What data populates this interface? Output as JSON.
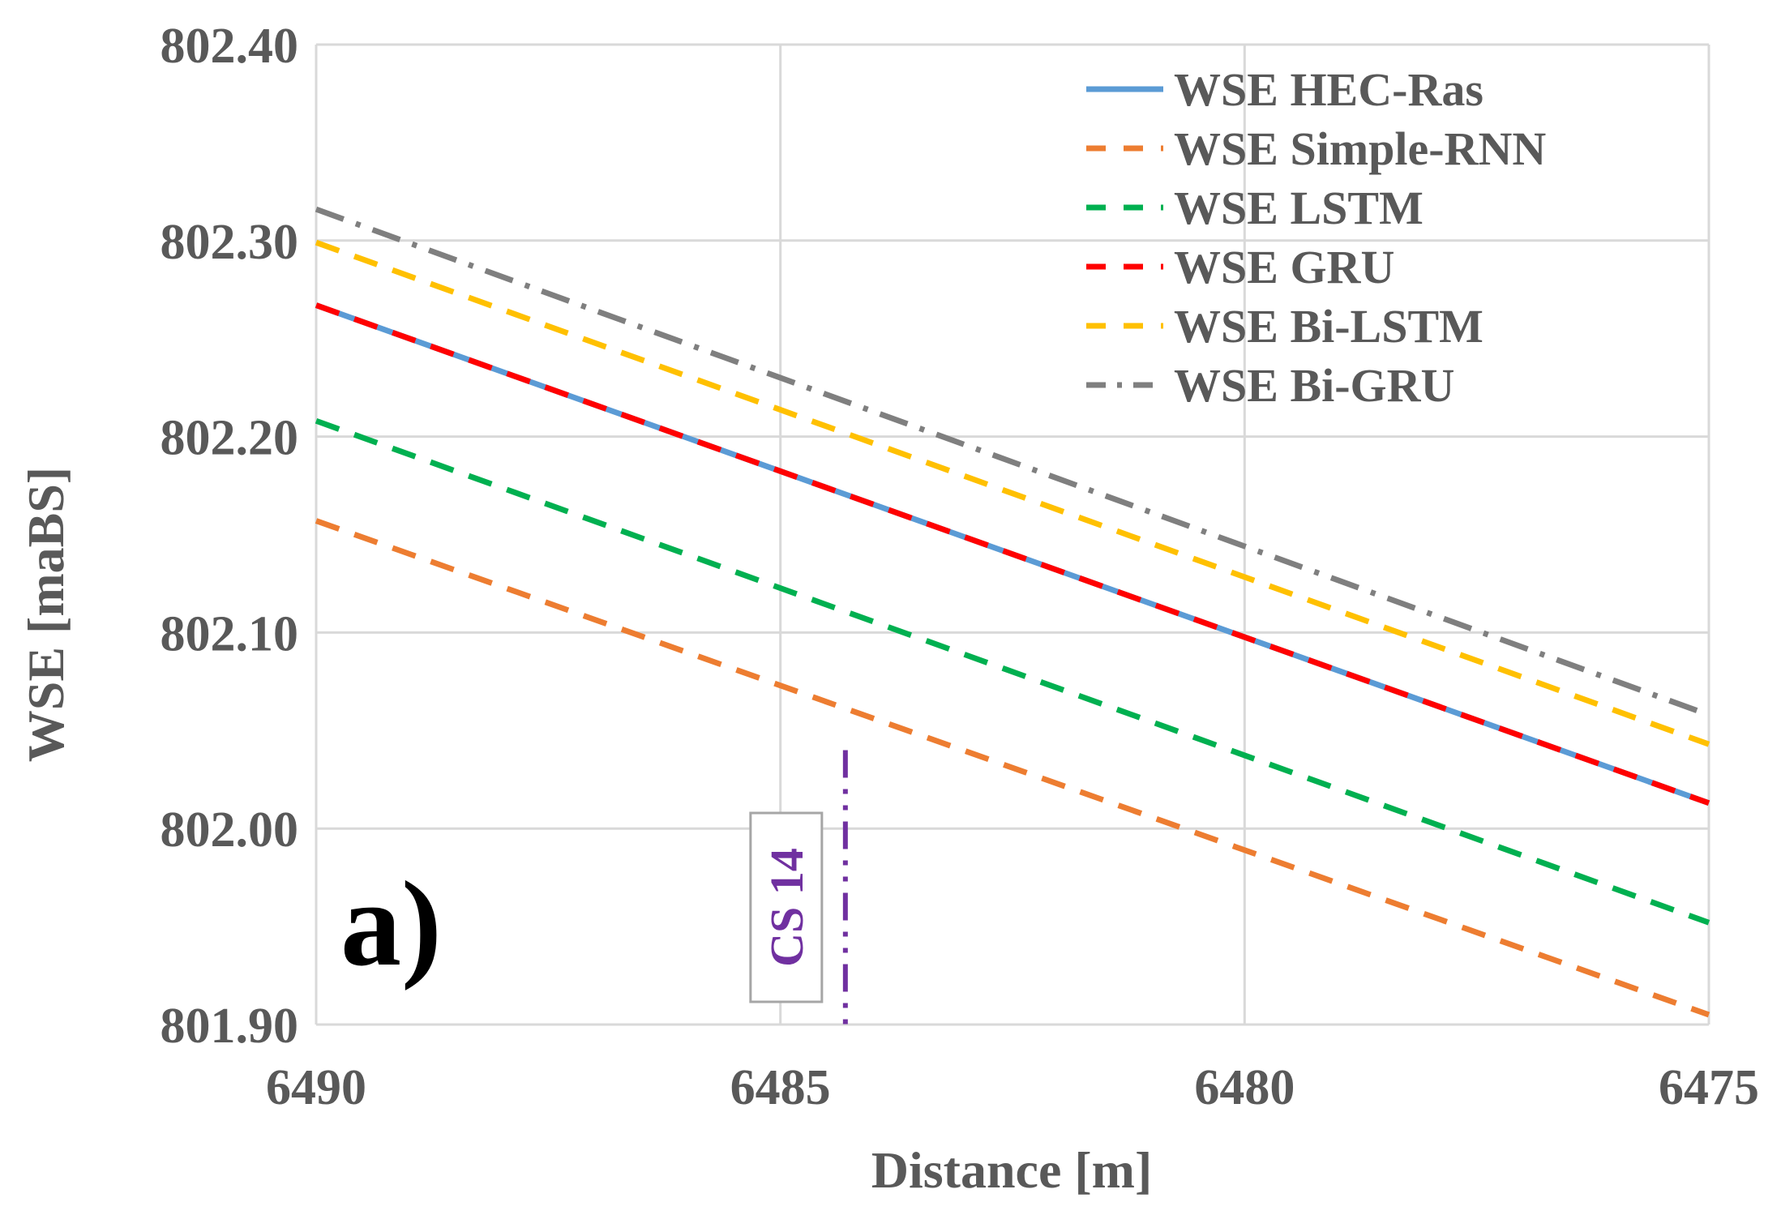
{
  "chart_data": {
    "type": "line",
    "panel_label": "a)",
    "title": "",
    "xlabel": "Distance [m]",
    "ylabel": "WSE [maBS]",
    "xlim": [
      6490,
      6475
    ],
    "ylim": [
      801.9,
      802.4
    ],
    "x_ticks": [
      6490,
      6485,
      6480,
      6475
    ],
    "x_tick_labels": [
      "6490",
      "6485",
      "6480",
      "6475"
    ],
    "y_ticks": [
      801.9,
      802.0,
      802.1,
      802.2,
      802.3,
      802.4
    ],
    "y_tick_labels": [
      "801.90",
      "802.00",
      "802.10",
      "802.20",
      "802.30",
      "802.40"
    ],
    "grid": true,
    "legend_position": "top-right",
    "series": [
      {
        "name": "WSE HEC-Ras",
        "x": [
          6490,
          6475
        ],
        "y": [
          802.267,
          802.013
        ],
        "color": "#5B9BD5",
        "style": "solid"
      },
      {
        "name": "WSE Simple-RNN",
        "x": [
          6490,
          6475
        ],
        "y": [
          802.157,
          801.905
        ],
        "color": "#ED7D31",
        "style": "dashed"
      },
      {
        "name": "WSE LSTM",
        "x": [
          6490,
          6475
        ],
        "y": [
          802.208,
          801.952
        ],
        "color": "#00B050",
        "style": "dashed"
      },
      {
        "name": "WSE GRU",
        "x": [
          6490,
          6475
        ],
        "y": [
          802.267,
          802.013
        ],
        "color": "#FF0000",
        "style": "dashed"
      },
      {
        "name": "WSE Bi-LSTM",
        "x": [
          6490,
          6475
        ],
        "y": [
          802.299,
          802.043
        ],
        "color": "#FFC000",
        "style": "dashed"
      },
      {
        "name": "WSE Bi-GRU",
        "x": [
          6490,
          6475
        ],
        "y": [
          802.316,
          802.058
        ],
        "color": "#7F7F7F",
        "style": "dashdot"
      }
    ],
    "annotations": [
      {
        "label": "CS 14",
        "x": 6484.3,
        "y_range": [
          801.9,
          802.04
        ],
        "color": "#7030A0",
        "style": "dashdotdot"
      }
    ]
  }
}
